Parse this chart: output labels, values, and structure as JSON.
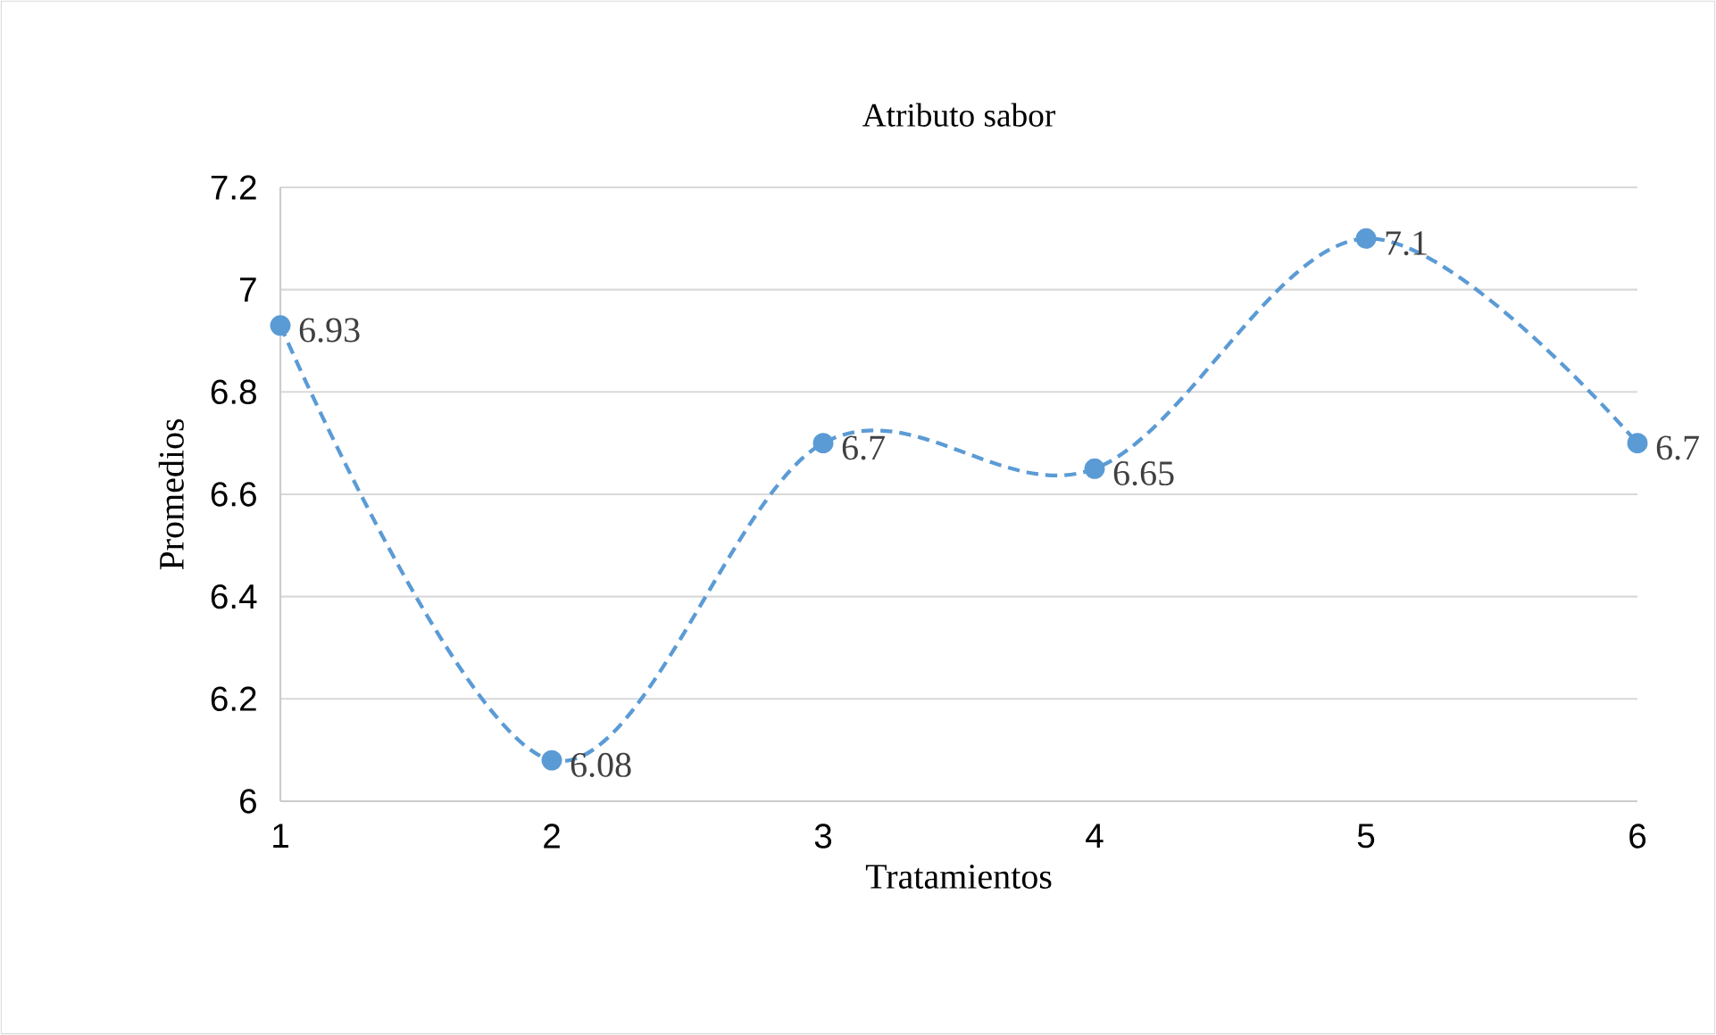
{
  "chart_data": {
    "type": "line",
    "title": "Atributo sabor",
    "xlabel": "Tratamientos",
    "ylabel": "Promedios",
    "x": [
      1,
      2,
      3,
      4,
      5,
      6
    ],
    "series": [
      {
        "color": "#5b9bd5",
        "values": [
          6.93,
          6.08,
          6.7,
          6.65,
          7.1,
          6.7
        ]
      }
    ],
    "xlim": [
      1,
      6
    ],
    "xticks": [
      1,
      2,
      3,
      4,
      5,
      6
    ],
    "ylim": [
      6,
      7.2
    ],
    "yticks": [
      6,
      6.2,
      6.4,
      6.6,
      6.8,
      7,
      7.2
    ],
    "grid": "y",
    "marker": "circle",
    "line_style": "dashed",
    "data_labels": true
  }
}
